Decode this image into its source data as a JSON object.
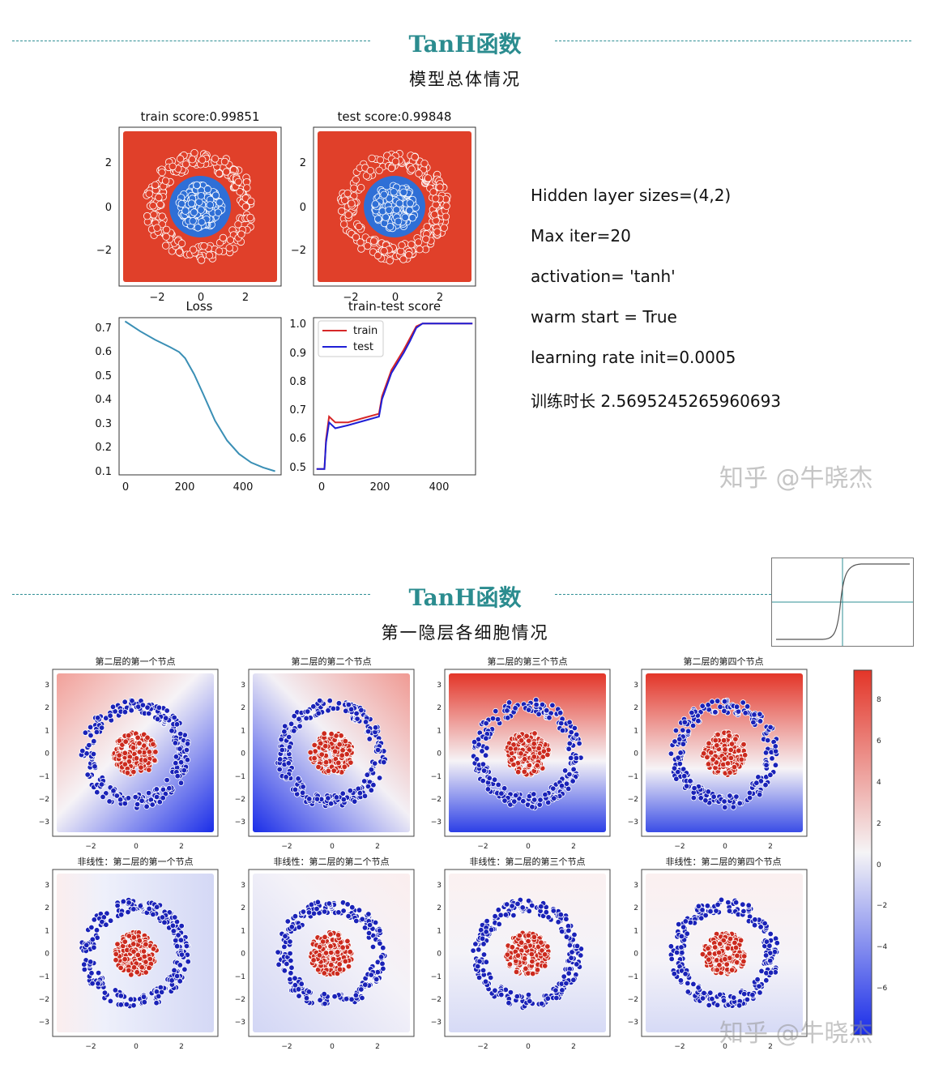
{
  "section1": {
    "title": "TanH函数",
    "subtitle": "模型总体情况",
    "params": [
      "Hidden layer sizes=(4,2)",
      "Max iter=20",
      "activation=   'tanh'",
      "warm start = True",
      "learning rate init=0.0005",
      "训练时长 2.5695245265960693"
    ],
    "watermark": "知乎 @牛晓杰"
  },
  "section2": {
    "title": "TanH函数",
    "subtitle": "第一隐层各细胞情况",
    "watermark": "知乎 @牛晓杰"
  },
  "colors": {
    "accent": "#2b8c8f",
    "red_region": "#e0402a",
    "blue_region": "#2f6fd6",
    "train_line": "#d62728",
    "test_line": "#1f1fd6",
    "loss_line": "#3a8fb5"
  },
  "chart_data": [
    {
      "type": "scatter",
      "title": "train score:0.99851",
      "xticks": [
        "−2",
        "0",
        "2"
      ],
      "yticks": [
        "2",
        "0",
        "−2"
      ],
      "xlim": [
        -3.5,
        3.5
      ],
      "ylim": [
        -3.5,
        3.5
      ],
      "background": "red with blue inner disk (radius ≈ 1.2)",
      "classes": [
        {
          "name": "inner",
          "radius_range": [
            0,
            1
          ],
          "color": "#2f6fd6"
        },
        {
          "name": "outer",
          "radius_range": [
            1.7,
            2.5
          ],
          "color": "#e0402a"
        }
      ]
    },
    {
      "type": "scatter",
      "title": "test score:0.99848",
      "xticks": [
        "−2",
        "0",
        "2"
      ],
      "yticks": [
        "2",
        "0",
        "−2"
      ],
      "xlim": [
        -3.5,
        3.5
      ],
      "ylim": [
        -3.5,
        3.5
      ],
      "background": "red with blue inner disk (radius ≈ 1.2)"
    },
    {
      "type": "line",
      "title": "Loss",
      "xlim": [
        -20,
        520
      ],
      "ylim": [
        0.09,
        0.73
      ],
      "xticks": [
        "0",
        "200",
        "400"
      ],
      "yticks": [
        "0.7",
        "0.6",
        "0.5",
        "0.4",
        "0.3",
        "0.2",
        "0.1"
      ],
      "series": [
        {
          "x": [
            0,
            50,
            100,
            150,
            180,
            200,
            230,
            260,
            300,
            340,
            380,
            420,
            460,
            500
          ],
          "y": [
            0.715,
            0.675,
            0.64,
            0.61,
            0.59,
            0.565,
            0.5,
            0.42,
            0.31,
            0.23,
            0.175,
            0.14,
            0.12,
            0.105
          ]
        }
      ]
    },
    {
      "type": "line",
      "title": "train-test score",
      "xlim": [
        -10,
        510
      ],
      "ylim": [
        0.48,
        1.02
      ],
      "xticks": [
        "0",
        "200",
        "400"
      ],
      "yticks": [
        "1.0",
        "0.9",
        "0.8",
        "0.7",
        "0.6",
        "0.5"
      ],
      "legend": "top-left",
      "series": [
        {
          "name": "train",
          "color": "#d62728",
          "x": [
            0,
            25,
            30,
            40,
            60,
            100,
            150,
            200,
            210,
            240,
            280,
            300,
            320,
            340,
            400,
            500
          ],
          "y": [
            0.5,
            0.5,
            0.6,
            0.68,
            0.66,
            0.66,
            0.675,
            0.69,
            0.75,
            0.84,
            0.91,
            0.95,
            0.99,
            1.0,
            1.0,
            1.0
          ]
        },
        {
          "name": "test",
          "color": "#1f1fd6",
          "x": [
            0,
            25,
            30,
            40,
            60,
            100,
            150,
            200,
            210,
            240,
            280,
            300,
            320,
            340,
            400,
            500
          ],
          "y": [
            0.5,
            0.5,
            0.59,
            0.66,
            0.64,
            0.65,
            0.665,
            0.68,
            0.74,
            0.83,
            0.9,
            0.94,
            0.985,
            1.0,
            1.0,
            1.0
          ]
        }
      ]
    },
    {
      "type": "heatmap",
      "subplot_titles": [
        "第二层的第一个节点",
        "第二层的第二个节点",
        "第二层的第三个节点",
        "第二层的第四个节点",
        "非线性：第二层的第一个节点",
        "非线性：第二层的第二个节点",
        "非线性：第二层的第三个节点",
        "非线性：第二层的第四个节点"
      ],
      "xticks": [
        "−2",
        "0",
        "2"
      ],
      "yticks": [
        "3",
        "2",
        "1",
        "0",
        "−1",
        "−2",
        "−3"
      ],
      "colorbar": {
        "ticks": [
          "8",
          "6",
          "4",
          "2",
          "0",
          "−2",
          "−4",
          "−6"
        ],
        "range": [
          -7.5,
          9.5
        ],
        "cmap": "bwr"
      }
    }
  ]
}
